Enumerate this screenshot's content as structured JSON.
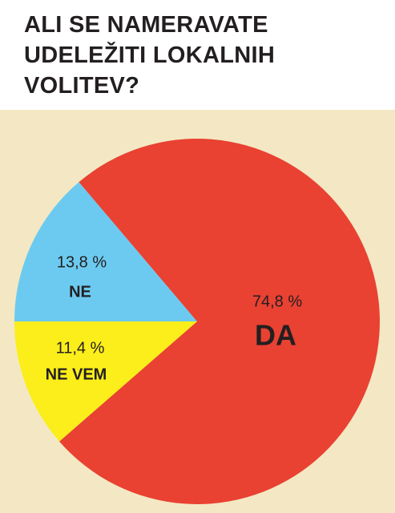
{
  "chart_data": {
    "type": "pie",
    "title": "ALI SE NAMERAVATE UDELEŽITI LOKALNIH VOLITEV?",
    "categories": [
      "NE",
      "DA",
      "NE VEM"
    ],
    "values": [
      13.8,
      74.8,
      11.4
    ],
    "value_labels": [
      "13,8 %",
      "74,8 %",
      "11,4 %"
    ],
    "colors": [
      "#6ccaf0",
      "#e94132",
      "#fbee1a"
    ]
  }
}
